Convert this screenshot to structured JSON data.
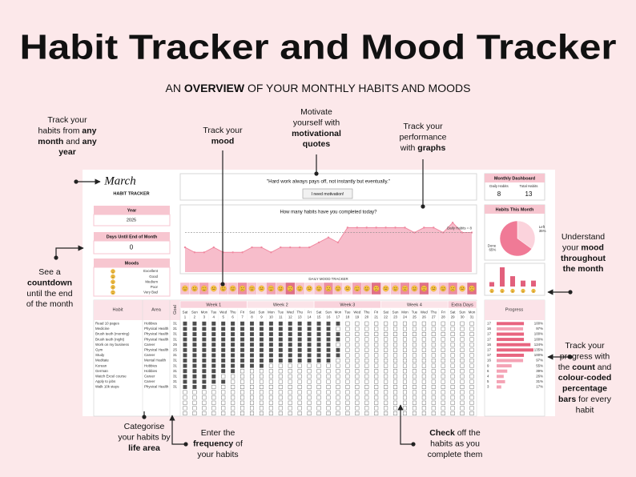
{
  "title": "Habit Tracker and Mood Tracker",
  "subtitle": [
    {
      "text": "AN "
    },
    {
      "text": "OVERVIEW",
      "bold": true
    },
    {
      "text": " OF YOUR MONTHLY HABITS AND MOODS"
    }
  ],
  "callouts": [
    {
      "lines": [
        [
          {
            "text": "Track your"
          }
        ],
        [
          {
            "text": "habits from "
          },
          {
            "text": "any",
            "bold": true
          }
        ],
        [
          {
            "text": "month",
            "bold": true
          },
          {
            "text": " and "
          },
          {
            "text": "any",
            "bold": true
          }
        ],
        [
          {
            "text": "year",
            "bold": true
          }
        ]
      ]
    },
    {
      "lines": [
        [
          {
            "text": "Track your"
          }
        ],
        [
          {
            "text": "mood",
            "bold": true
          }
        ]
      ]
    },
    {
      "lines": [
        [
          {
            "text": "Motivate"
          }
        ],
        [
          {
            "text": "yourself with"
          }
        ],
        [
          {
            "text": "motivational",
            "bold": true
          }
        ],
        [
          {
            "text": "quotes",
            "bold": true
          }
        ]
      ]
    },
    {
      "lines": [
        [
          {
            "text": "Track your"
          }
        ],
        [
          {
            "text": "performance"
          }
        ],
        [
          {
            "text": "with "
          },
          {
            "text": "graphs",
            "bold": true
          }
        ]
      ]
    },
    {
      "lines": [
        [
          {
            "text": "Understand"
          }
        ],
        [
          {
            "text": "your "
          },
          {
            "text": "mood",
            "bold": true
          }
        ],
        [
          {
            "text": "throughout",
            "bold": true
          }
        ],
        [
          {
            "text": "the month",
            "bold": true
          }
        ]
      ]
    },
    {
      "lines": [
        [
          {
            "text": "See a"
          }
        ],
        [
          {
            "text": "countdown",
            "bold": true
          }
        ],
        [
          {
            "text": "until the end"
          }
        ],
        [
          {
            "text": "of the month"
          }
        ]
      ]
    },
    {
      "lines": [
        [
          {
            "text": "Track your"
          }
        ],
        [
          {
            "text": "progress with"
          }
        ],
        [
          {
            "text": "the "
          },
          {
            "text": "count",
            "bold": true
          },
          {
            "text": " and"
          }
        ],
        [
          {
            "text": "colour-coded",
            "bold": true
          }
        ],
        [
          {
            "text": "percentage",
            "bold": true
          }
        ],
        [
          {
            "text": "bars",
            "bold": true
          },
          {
            "text": " for every"
          }
        ],
        [
          {
            "text": "habit"
          }
        ]
      ]
    },
    {
      "lines": [
        [
          {
            "text": "Categorise"
          }
        ],
        [
          {
            "text": "your habits by"
          }
        ],
        [
          {
            "text": "life area",
            "bold": true
          }
        ]
      ]
    },
    {
      "lines": [
        [
          {
            "text": "Enter the"
          }
        ],
        [
          {
            "text": "frequency",
            "bold": true
          },
          {
            "text": " of"
          }
        ],
        [
          {
            "text": "your habits"
          }
        ]
      ]
    },
    {
      "lines": [
        [
          {
            "text": "Check",
            "bold": true
          },
          {
            "text": " off the"
          }
        ],
        [
          {
            "text": "habits as you"
          }
        ],
        [
          {
            "text": "complete them"
          }
        ]
      ]
    }
  ],
  "sheet": {
    "month": "March",
    "sheet_title": "HABIT TRACKER",
    "year_label": "Year",
    "year": 2025,
    "countdown_label": "Days Until End of Month",
    "countdown": 0,
    "moods_label": "Moods",
    "moods": [
      {
        "label": "Excellent",
        "color": "#f2a3b5"
      },
      {
        "label": "Good",
        "color": "#f7c3ce"
      },
      {
        "label": "Medium",
        "color": "#fad9e0"
      },
      {
        "label": "Poor",
        "color": "#ec8ea3"
      },
      {
        "label": "Very Bad",
        "color": "#e07088"
      }
    ],
    "quote": "\"Hard work always pays off, not instantly but eventually.\"",
    "button": "I need motivation!",
    "chart": {
      "title": "How many habits have you completed today?",
      "values": [
        5,
        4,
        4,
        5,
        4,
        4,
        4,
        5,
        5,
        4,
        5,
        5,
        5,
        5,
        6,
        7,
        6,
        9,
        9,
        9,
        9,
        9,
        9,
        9,
        8,
        9,
        9,
        8,
        10,
        8,
        8
      ],
      "ylim": [
        0,
        11
      ],
      "average": 8,
      "average_label": "Daily Habits = 8",
      "color": "#f4a7b9"
    },
    "mood_tracker_label": "DAILY MOOD TRACKER",
    "mood_days": [
      1,
      1,
      0,
      2,
      1,
      1,
      3,
      1,
      2,
      0,
      1,
      4,
      1,
      2,
      1,
      3,
      1,
      2,
      0,
      1,
      4,
      2,
      1,
      3,
      1,
      4,
      2,
      1,
      3,
      2,
      4
    ],
    "dashboard": {
      "title": "Monthly Dashboard",
      "items": [
        {
          "label": "Daily Habits",
          "value": 8
        },
        {
          "label": "Total Habits",
          "value": 13
        }
      ]
    },
    "pie": {
      "title": "Habits This Month",
      "slices": [
        {
          "label": "Left",
          "value": 35,
          "value_label": "35%",
          "color": "#fbd3dc"
        },
        {
          "label": "Done",
          "value": 65,
          "value_label": "65%",
          "color": "#f07a96"
        }
      ]
    },
    "mood_counts": [
      3,
      13,
      7,
      4,
      4
    ],
    "table": {
      "habit_header": "Habit",
      "area_header": "Area",
      "goal_header": "Goal",
      "progress_header": "Progress",
      "weeks": [
        {
          "label": "Week 1",
          "span": 7
        },
        {
          "label": "Week 2",
          "span": 7
        },
        {
          "label": "Week 3",
          "span": 7
        },
        {
          "label": "Week 4",
          "span": 7
        },
        {
          "label": "Extra Days",
          "span": 3
        }
      ],
      "weekdays": [
        "Sat",
        "Sun",
        "Mon",
        "Tue",
        "Wed",
        "Thu",
        "Fri",
        "Sat",
        "Sun",
        "Mon",
        "Tue",
        "Wed",
        "Thu",
        "Fri",
        "Sat",
        "Sun",
        "Mon",
        "Tue",
        "Wed",
        "Thu",
        "Fri",
        "Sat",
        "Sun",
        "Mon",
        "Tue",
        "Wed",
        "Thu",
        "Fri",
        "Sat",
        "Sun",
        "Mon"
      ],
      "days": [
        1,
        2,
        3,
        4,
        5,
        6,
        7,
        8,
        9,
        10,
        11,
        12,
        13,
        14,
        15,
        16,
        17,
        18,
        19,
        20,
        21,
        22,
        23,
        24,
        25,
        26,
        27,
        28,
        29,
        30,
        31
      ],
      "habits": [
        {
          "name": "Read 10 pages",
          "area": "Hobbies",
          "goal": 31,
          "done": 17,
          "progress": 100,
          "progress_label": "100%"
        },
        {
          "name": "Medicine",
          "area": "Physical Health",
          "goal": 31,
          "done": 16,
          "progress": 97,
          "progress_label": "97%"
        },
        {
          "name": "Brush teeth (morning)",
          "area": "Physical Health",
          "goal": 31,
          "done": 17,
          "progress": 100,
          "progress_label": "100%"
        },
        {
          "name": "Brush teeth (night)",
          "area": "Physical Health",
          "goal": 31,
          "done": 17,
          "progress": 100,
          "progress_label": "100%"
        },
        {
          "name": "Work on my business",
          "area": "Career",
          "goal": 25,
          "done": 16,
          "progress": 124,
          "progress_label": "124%"
        },
        {
          "name": "Gym",
          "area": "Physical Health",
          "goal": 25,
          "done": 17,
          "progress": 135,
          "progress_label": "135%"
        },
        {
          "name": "Study",
          "area": "Career",
          "goal": 31,
          "done": 17,
          "progress": 100,
          "progress_label": "100%"
        },
        {
          "name": "Meditate",
          "area": "Mental Health",
          "goal": 31,
          "done": 16,
          "progress": 97,
          "progress_label": "97%"
        },
        {
          "name": "Korean",
          "area": "Hobbies",
          "goal": 31,
          "done": 9,
          "progress": 55,
          "progress_label": "55%"
        },
        {
          "name": "German",
          "area": "Hobbies",
          "goal": 31,
          "done": 6,
          "progress": 39,
          "progress_label": "39%"
        },
        {
          "name": "Watch Excel course",
          "area": "Career",
          "goal": 31,
          "done": 4,
          "progress": 26,
          "progress_label": "26%"
        },
        {
          "name": "Apply to jobs",
          "area": "Career",
          "goal": 31,
          "done": 5,
          "progress": 31,
          "progress_label": "31%"
        },
        {
          "name": "Walk 10k steps",
          "area": "Physical Health",
          "goal": 31,
          "done": 3,
          "progress": 17,
          "progress_label": "17%"
        }
      ]
    }
  }
}
